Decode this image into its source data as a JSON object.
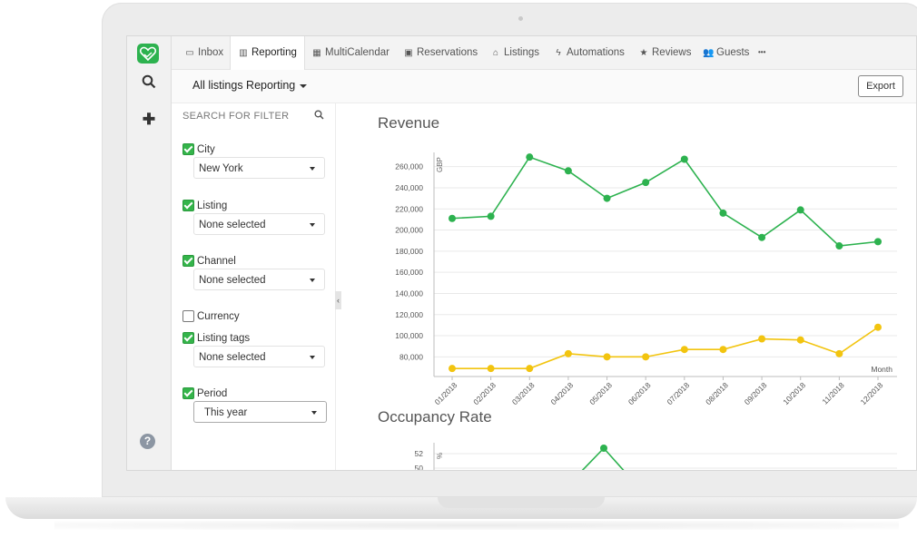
{
  "nav": {
    "items": [
      {
        "icon": "inbox-icon",
        "label": "Inbox",
        "active": false
      },
      {
        "icon": "bar-chart-icon",
        "label": "Reporting",
        "active": true
      },
      {
        "icon": "calendar-icon",
        "label": "MultiCalendar",
        "active": false
      },
      {
        "icon": "calendar-check-icon",
        "label": "Reservations",
        "active": false
      },
      {
        "icon": "home-icon",
        "label": "Listings",
        "active": false
      },
      {
        "icon": "bolt-icon",
        "label": "Automations",
        "active": false
      },
      {
        "icon": "star-icon",
        "label": "Reviews",
        "active": false
      },
      {
        "icon": "users-icon",
        "label": "Guests",
        "active": false
      }
    ],
    "more_label": "•••"
  },
  "subbar": {
    "listing_selector": "All listings Reporting",
    "export_label": "Export"
  },
  "filters": {
    "search_placeholder": "SEARCH FOR FILTER",
    "groups": [
      {
        "label": "City",
        "checked": true,
        "value": "New York"
      },
      {
        "label": "Listing",
        "checked": true,
        "value": "None selected"
      },
      {
        "label": "Channel",
        "checked": true,
        "value": "None selected"
      },
      {
        "label": "Currency",
        "checked": false
      },
      {
        "label": "Listing tags",
        "checked": true,
        "value": "None selected"
      },
      {
        "label": "Period",
        "checked": true,
        "value": "This year"
      }
    ]
  },
  "colors": {
    "green": "#2db24f",
    "yellow": "#f2c40f",
    "accent": "#2db24f"
  },
  "chart_data": [
    {
      "type": "line",
      "title": "Revenue",
      "ylabel": "GBP",
      "xlabel": "Month",
      "categories": [
        "01/2018",
        "02/2018",
        "03/2018",
        "04/2018",
        "05/2018",
        "06/2018",
        "07/2018",
        "08/2018",
        "09/2018",
        "10/2018",
        "11/2018",
        "12/2018"
      ],
      "yticks": [
        "80,000",
        "100,000",
        "120,000",
        "140,000",
        "160,000",
        "180,000",
        "200,000",
        "220,000",
        "240,000",
        "260,000"
      ],
      "ylim": [
        70000,
        270000
      ],
      "series": [
        {
          "color": "#2db24f",
          "values": [
            211000,
            213000,
            269000,
            256000,
            230000,
            245000,
            267000,
            216000,
            193000,
            219000,
            185000,
            189000
          ]
        },
        {
          "color": "#f2c40f",
          "values": [
            69000,
            69000,
            69000,
            83000,
            80000,
            80000,
            87000,
            87000,
            97000,
            96000,
            83000,
            108000
          ]
        }
      ]
    },
    {
      "type": "line",
      "title": "Occupancy Rate",
      "ylabel": "%",
      "yticks": [
        "52",
        "50"
      ],
      "series": [
        {
          "color": "#2db24f"
        }
      ]
    }
  ]
}
